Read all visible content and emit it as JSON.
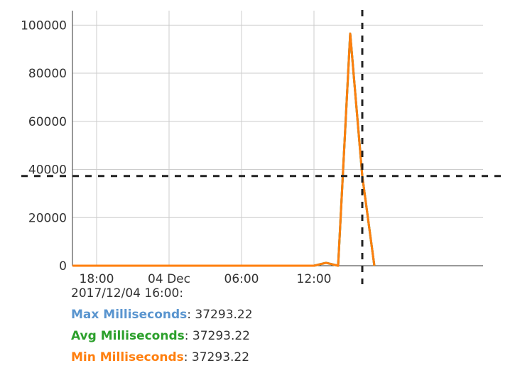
{
  "chart_data": {
    "type": "line",
    "x_ticks": [
      "18:00",
      "04 Dec",
      "06:00",
      "12:00"
    ],
    "y_ticks": [
      "0",
      "20000",
      "40000",
      "60000",
      "80000",
      "100000"
    ],
    "ylim": [
      0,
      106000
    ],
    "grid": true,
    "x_hours": [
      "2017-12-03T16:00",
      "2017-12-05T02:00"
    ],
    "series": [
      {
        "name": "Max Milliseconds",
        "color": "#5a95cf",
        "points": [
          [
            "2017-12-03T16:00",
            0
          ],
          [
            "2017-12-04T12:00",
            0
          ],
          [
            "2017-12-04T13:00",
            1200
          ],
          [
            "2017-12-04T14:00",
            0
          ],
          [
            "2017-12-04T15:00",
            96500
          ],
          [
            "2017-12-04T16:00",
            37293.22
          ],
          [
            "2017-12-04T17:00",
            0
          ]
        ]
      },
      {
        "name": "Avg Milliseconds",
        "color": "#2ca02c",
        "points": [
          [
            "2017-12-03T16:00",
            0
          ],
          [
            "2017-12-04T12:00",
            0
          ],
          [
            "2017-12-04T13:00",
            1200
          ],
          [
            "2017-12-04T14:00",
            0
          ],
          [
            "2017-12-04T15:00",
            96500
          ],
          [
            "2017-12-04T16:00",
            37293.22
          ],
          [
            "2017-12-04T17:00",
            0
          ]
        ]
      },
      {
        "name": "Min Milliseconds",
        "color": "#ff7f0e",
        "points": [
          [
            "2017-12-03T16:00",
            0
          ],
          [
            "2017-12-04T12:00",
            0
          ],
          [
            "2017-12-04T13:00",
            1200
          ],
          [
            "2017-12-04T14:00",
            0
          ],
          [
            "2017-12-04T15:00",
            96500
          ],
          [
            "2017-12-04T16:00",
            37293.22
          ],
          [
            "2017-12-04T17:00",
            0
          ]
        ]
      }
    ],
    "crosshair": {
      "x": "2017-12-04T16:00",
      "y": 37293.22
    }
  },
  "tooltip": {
    "timestamp": "2017/12/04 16:00:",
    "rows": [
      {
        "label": "Max Milliseconds",
        "value": ": 37293.22",
        "color": "#5a95cf"
      },
      {
        "label": "Avg Milliseconds",
        "value": ": 37293.22",
        "color": "#2ca02c"
      },
      {
        "label": "Min Milliseconds",
        "value": ": 37293.22",
        "color": "#ff7f0e"
      }
    ]
  }
}
